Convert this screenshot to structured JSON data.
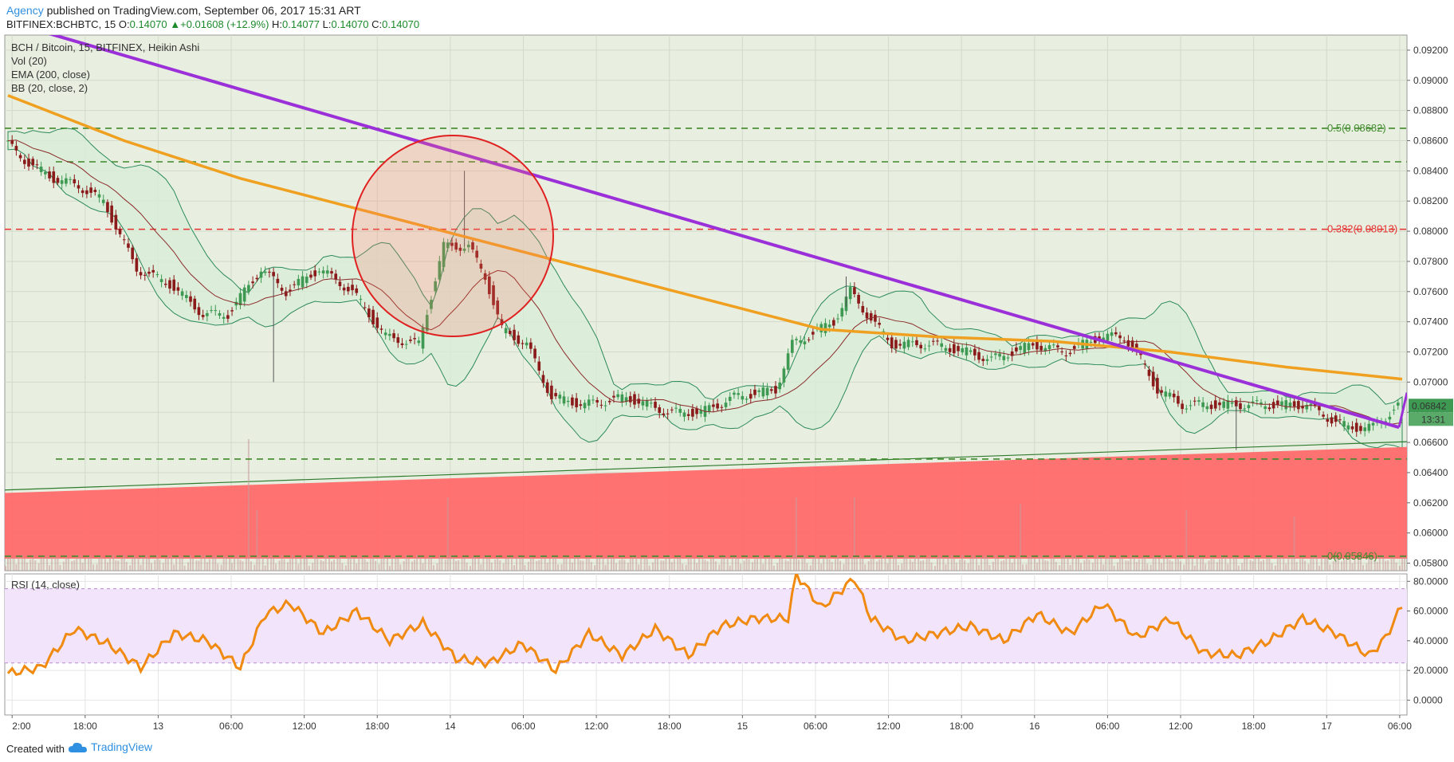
{
  "header": {
    "author": "Agency",
    "published_text": "published on TradingView.com, September 06, 2017 15:31 ART",
    "symbol": "BITFINEX:BCHBTC, 15",
    "open_label": "O:",
    "open": "0.14070",
    "change": "+0.01608 (+12.9%)",
    "high_label": "H:",
    "high": "0.14077",
    "low_label": "L:",
    "low": "0.14070",
    "close_label": "C:",
    "close": "0.14070"
  },
  "legend": {
    "title": "BCH / Bitcoin, 15, BITFINEX, Heikin Ashi",
    "vol": "Vol (20)",
    "ema": "EMA (200, close)",
    "bb": "BB (20, close, 2)",
    "rsi": "RSI (14, close)"
  },
  "price_badge": {
    "value": "0.06842",
    "time": "13:31"
  },
  "fib": {
    "level_05": "0.5(0.08682)",
    "level_0382": "0.382(0.08013)",
    "level_0": "0(0.05846)"
  },
  "footer": {
    "created": "Created with",
    "brand": "TradingView"
  },
  "colors": {
    "up": "#3e9a52",
    "down": "#8b1a1a",
    "ema": "#f0a020",
    "trendline": "#9b30d9",
    "bb": "#2c8a5a",
    "bb_fill": "#d8ecd8",
    "zone": "#ff6a6a",
    "rsi_line": "#f08a10",
    "rsi_band": "#f2e4fb",
    "fib_green": "#3f8a2a",
    "fib_red": "#e63030",
    "circle": "#e02020",
    "background": "#e8efe0"
  },
  "chart_data": [
    {
      "type": "candlestick",
      "title": "BCH / Bitcoin, 15, BITFINEX, Heikin Ashi",
      "x_ticks": [
        "2:00",
        "18:00",
        "13",
        "06:00",
        "12:00",
        "18:00",
        "14",
        "06:00",
        "12:00",
        "18:00",
        "15",
        "06:00",
        "12:00",
        "18:00",
        "16",
        "06:00",
        "12:00",
        "18:00",
        "17",
        "06:00"
      ],
      "y_ticks": [
        "0.09200",
        "0.09000",
        "0.08800",
        "0.08600",
        "0.08400",
        "0.08200",
        "0.08000",
        "0.07800",
        "0.07600",
        "0.07400",
        "0.07200",
        "0.07000",
        "0.06800",
        "0.06600",
        "0.06400",
        "0.06200",
        "0.06000",
        "0.05800"
      ],
      "ylim": [
        0.0575,
        0.093
      ],
      "price_path": [
        [
          0,
          0.086
        ],
        [
          3,
          0.0845
        ],
        [
          6,
          0.0835
        ],
        [
          9,
          0.083
        ],
        [
          12,
          0.082
        ],
        [
          16,
          0.0775
        ],
        [
          20,
          0.0765
        ],
        [
          24,
          0.0745
        ],
        [
          27,
          0.0745
        ],
        [
          31,
          0.0775
        ],
        [
          34,
          0.076
        ],
        [
          38,
          0.0775
        ],
        [
          42,
          0.076
        ],
        [
          46,
          0.073
        ],
        [
          50,
          0.0725
        ],
        [
          53,
          0.079
        ],
        [
          56,
          0.079
        ],
        [
          58,
          0.077
        ],
        [
          60,
          0.0735
        ],
        [
          63,
          0.0725
        ],
        [
          66,
          0.069
        ],
        [
          70,
          0.0685
        ],
        [
          75,
          0.069
        ],
        [
          80,
          0.068
        ],
        [
          84,
          0.068
        ],
        [
          88,
          0.069
        ],
        [
          93,
          0.0695
        ],
        [
          95,
          0.0725
        ],
        [
          100,
          0.074
        ],
        [
          102,
          0.076
        ],
        [
          104,
          0.0745
        ],
        [
          107,
          0.0725
        ],
        [
          112,
          0.0725
        ],
        [
          116,
          0.072
        ],
        [
          119,
          0.0715
        ],
        [
          124,
          0.0725
        ],
        [
          128,
          0.072
        ],
        [
          132,
          0.073
        ],
        [
          135,
          0.073
        ],
        [
          137,
          0.0715
        ],
        [
          139,
          0.0695
        ],
        [
          142,
          0.0685
        ],
        [
          146,
          0.0685
        ],
        [
          152,
          0.0685
        ],
        [
          157,
          0.0685
        ],
        [
          160,
          0.0675
        ],
        [
          162,
          0.067
        ],
        [
          165,
          0.067
        ],
        [
          168,
          0.0684
        ]
      ],
      "ema_200": [
        [
          0,
          0.089
        ],
        [
          14,
          0.086
        ],
        [
          28,
          0.0835
        ],
        [
          42,
          0.0815
        ],
        [
          56,
          0.0795
        ],
        [
          70,
          0.0775
        ],
        [
          84,
          0.0755
        ],
        [
          98,
          0.0735
        ],
        [
          112,
          0.073
        ],
        [
          126,
          0.0727
        ],
        [
          140,
          0.072
        ],
        [
          154,
          0.071
        ],
        [
          168,
          0.0702
        ]
      ],
      "rsi": {
        "ylim": [
          -10,
          85
        ],
        "y_ticks": [
          "80.0000",
          "60.0000",
          "40.0000",
          "20.0000",
          "0.0000"
        ],
        "bands": [
          25,
          75
        ],
        "values": [
          [
            0,
            18
          ],
          [
            4,
            22
          ],
          [
            8,
            48
          ],
          [
            12,
            38
          ],
          [
            16,
            22
          ],
          [
            20,
            45
          ],
          [
            24,
            40
          ],
          [
            28,
            22
          ],
          [
            31,
            58
          ],
          [
            34,
            65
          ],
          [
            38,
            45
          ],
          [
            42,
            60
          ],
          [
            46,
            40
          ],
          [
            50,
            52
          ],
          [
            54,
            28
          ],
          [
            58,
            25
          ],
          [
            62,
            38
          ],
          [
            66,
            20
          ],
          [
            70,
            45
          ],
          [
            74,
            30
          ],
          [
            78,
            48
          ],
          [
            82,
            30
          ],
          [
            86,
            50
          ],
          [
            90,
            55
          ],
          [
            94,
            55
          ],
          [
            95,
            85
          ],
          [
            98,
            62
          ],
          [
            102,
            82
          ],
          [
            104,
            55
          ],
          [
            108,
            40
          ],
          [
            112,
            45
          ],
          [
            116,
            50
          ],
          [
            120,
            40
          ],
          [
            124,
            58
          ],
          [
            128,
            45
          ],
          [
            132,
            65
          ],
          [
            136,
            42
          ],
          [
            140,
            55
          ],
          [
            144,
            32
          ],
          [
            148,
            30
          ],
          [
            152,
            40
          ],
          [
            156,
            55
          ],
          [
            160,
            45
          ],
          [
            164,
            30
          ],
          [
            166,
            42
          ],
          [
            168,
            64
          ]
        ]
      }
    }
  ]
}
